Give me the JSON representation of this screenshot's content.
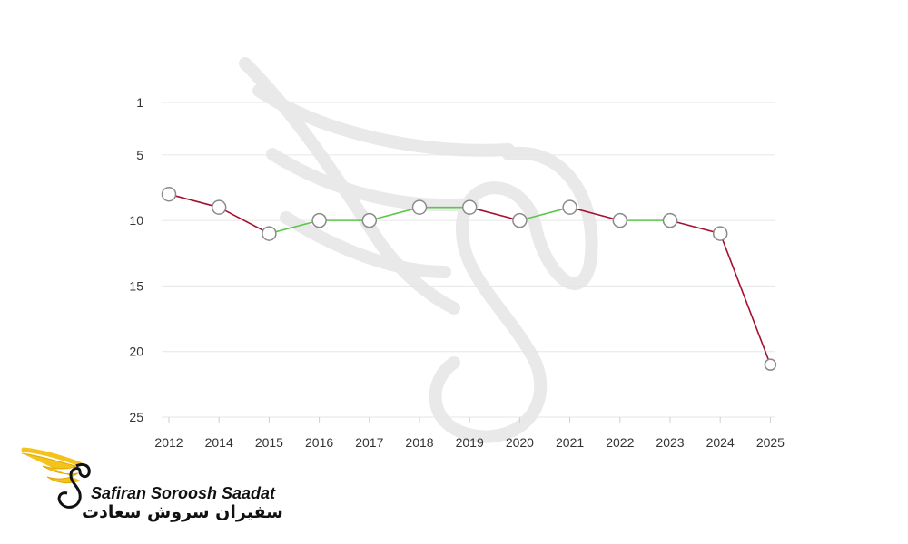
{
  "chart_data": {
    "type": "line",
    "title": "",
    "xlabel": "",
    "ylabel": "",
    "y_axis_inverted": true,
    "ylim": [
      1,
      25
    ],
    "yticks": [
      1,
      5,
      10,
      15,
      20,
      25
    ],
    "grid": true,
    "categories": [
      "2012",
      "2014",
      "2015",
      "2016",
      "2017",
      "2018",
      "2019",
      "2020",
      "2021",
      "2022",
      "2023",
      "2024",
      "2025"
    ],
    "values": [
      8,
      9,
      11,
      10,
      10,
      9,
      9,
      10,
      9,
      10,
      10,
      11,
      21
    ],
    "colors": {
      "decline": "#a6102f",
      "improve_or_same": "#5cc64a",
      "last_point": "#0f5fc4",
      "point_border": "#8a8a8a",
      "grid": "#e6e6e6"
    }
  },
  "logo": {
    "name_en": "Safiran Soroosh Saadat",
    "name_fa": "سفیران سروش سعادت",
    "colors": {
      "wing": "#f3c21b",
      "text": "#111111"
    }
  }
}
